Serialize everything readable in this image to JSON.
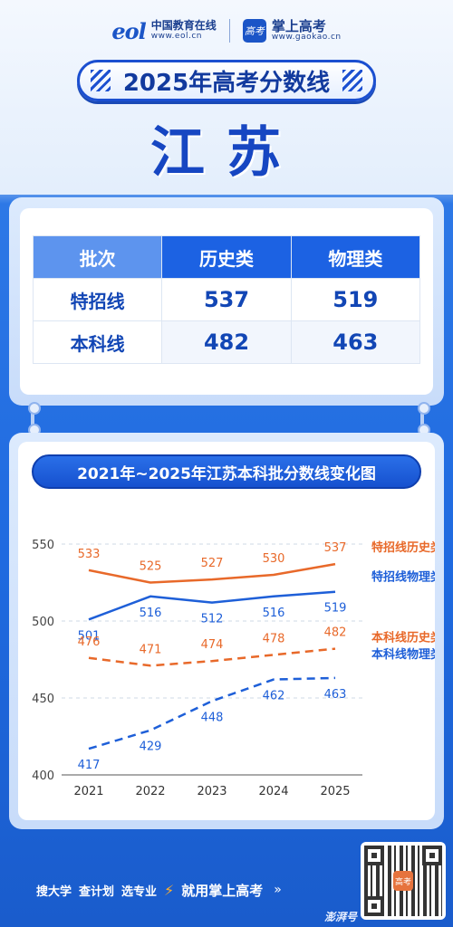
{
  "header": {
    "eol_logo_mark": "eol",
    "eol_name": "中国教育在线",
    "eol_url": "www.eol.cn",
    "gaokao_badge": "高考",
    "gaokao_name": "掌上高考",
    "gaokao_url": "www.gaokao.cn"
  },
  "banner": {
    "title": "2025年高考分数线"
  },
  "province": "江苏",
  "score_table": {
    "headers": [
      "批次",
      "历史类",
      "物理类"
    ],
    "rows": [
      {
        "label": "特招线",
        "history": "537",
        "physics": "519"
      },
      {
        "label": "本科线",
        "history": "482",
        "physics": "463"
      }
    ]
  },
  "chart_data": {
    "type": "line",
    "title": "2021年~2025年江苏本科批分数线变化图",
    "categories": [
      "2021",
      "2022",
      "2023",
      "2024",
      "2025"
    ],
    "ylim": [
      400,
      550
    ],
    "yticks": [
      400,
      450,
      500,
      550
    ],
    "grid": "horizontal dashed",
    "legend": "right end labels",
    "series": [
      {
        "name": "特招线历史类",
        "values": [
          533,
          525,
          527,
          530,
          537
        ],
        "color": "#e8692a",
        "dashed": false
      },
      {
        "name": "特招线物理类",
        "values": [
          501,
          516,
          512,
          516,
          519
        ],
        "color": "#1e5fd8",
        "dashed": false
      },
      {
        "name": "本科线历史类",
        "values": [
          476,
          471,
          474,
          478,
          482
        ],
        "color": "#e8692a",
        "dashed": true
      },
      {
        "name": "本科线物理类",
        "values": [
          417,
          429,
          448,
          462,
          463
        ],
        "color": "#1e5fd8",
        "dashed": true
      }
    ]
  },
  "footer": {
    "items": [
      "搜大学",
      "查计划",
      "选专业"
    ],
    "cta": "就用掌上高考",
    "watermark": "澎湃号"
  },
  "colors": {
    "primary_blue": "#1c62e3",
    "dark_blue": "#1246b5",
    "orange": "#e8692a"
  }
}
